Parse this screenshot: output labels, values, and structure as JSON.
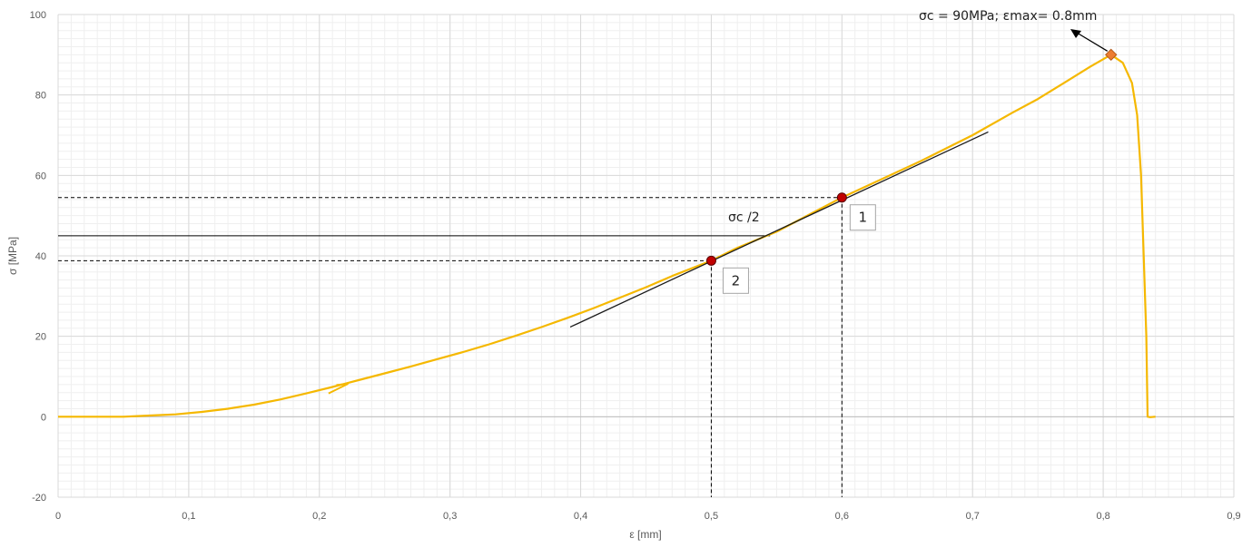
{
  "chart_data": {
    "type": "line",
    "xlabel": "ε [mm]",
    "ylabel": "σ [MPa]",
    "xlim": [
      0,
      0.9
    ],
    "ylim": [
      -20,
      100
    ],
    "x_ticks": [
      "0",
      "0,1",
      "0,2",
      "0,3",
      "0,4",
      "0,5",
      "0,6",
      "0,7",
      "0,8",
      "0,9"
    ],
    "y_ticks": [
      "-20",
      "0",
      "20",
      "40",
      "60",
      "80",
      "100"
    ],
    "grid": "major and minor",
    "colors": {
      "curve": "#F5B800",
      "points": "#C00000",
      "peak": "#ED7D31",
      "lines": "#000000",
      "grid_major": "#D9D9D9",
      "grid_minor": "#EFEFEF"
    },
    "series": [
      {
        "x": [
          0,
          0.05,
          0.07,
          0.09,
          0.11,
          0.13,
          0.15,
          0.17,
          0.19,
          0.21,
          0.23,
          0.25,
          0.27,
          0.29,
          0.31,
          0.33,
          0.35,
          0.37,
          0.39,
          0.41,
          0.43,
          0.45,
          0.47,
          0.5,
          0.52,
          0.55,
          0.6,
          0.63,
          0.66,
          0.7,
          0.73,
          0.75,
          0.77,
          0.79,
          0.806,
          0.815,
          0.822,
          0.826,
          0.829,
          0.831,
          0.833,
          0.834,
          0.836,
          0.84
        ],
        "y": [
          0,
          0,
          0.3,
          0.6,
          1.2,
          2,
          3,
          4.3,
          5.8,
          7.4,
          9.1,
          10.8,
          12.5,
          14.3,
          16.1,
          18,
          20.1,
          22.3,
          24.6,
          27,
          29.6,
          32.2,
          35,
          38.8,
          42,
          46,
          54.5,
          59,
          63.5,
          70,
          75.5,
          79,
          83,
          87,
          90,
          88,
          83,
          75,
          60,
          40,
          20,
          0,
          -0.1,
          0
        ]
      },
      {
        "name": "tangent",
        "x": [
          0.392,
          0.712
        ],
        "y": [
          22.3,
          70.8
        ]
      }
    ],
    "points": [
      {
        "label": "1",
        "x": 0.6,
        "y": 54.5
      },
      {
        "label": "2",
        "x": 0.5,
        "y": 38.8
      }
    ],
    "peak": {
      "x": 0.806,
      "y": 90
    },
    "half_line_y": 45,
    "annotations": {
      "peak_text": "σc = 90MPa; εmax= 0.8mm",
      "half_text": "σc /2"
    }
  }
}
